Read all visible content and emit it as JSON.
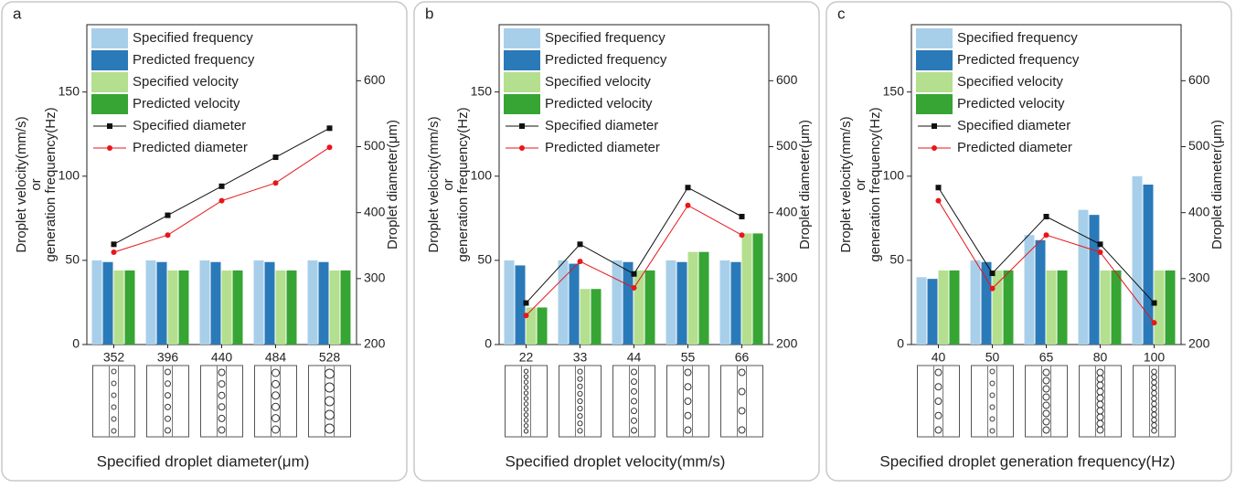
{
  "chart_data": [
    {
      "type": "bar",
      "panel": "a",
      "categories": [
        "352",
        "396",
        "440",
        "484",
        "528"
      ],
      "series": [
        {
          "name": "Specified frequency",
          "color": "#a8cfea",
          "values": [
            50,
            50,
            50,
            50,
            50
          ]
        },
        {
          "name": "Predicted frequency",
          "color": "#2a7ab9",
          "values": [
            49,
            49,
            49,
            49,
            49
          ]
        },
        {
          "name": "Specified velocity",
          "color": "#b4df8e",
          "values": [
            44,
            44,
            44,
            44,
            44
          ]
        },
        {
          "name": "Predicted velocity",
          "color": "#36a534",
          "values": [
            44,
            44,
            44,
            44,
            44
          ]
        },
        {
          "name": "Specified diameter",
          "color": "#111111",
          "axis": "y2",
          "marker": "square",
          "values": [
            352,
            396,
            440,
            484,
            528
          ]
        },
        {
          "name": "Predicted diameter",
          "color": "#e8161b",
          "axis": "y2",
          "marker": "circle",
          "values": [
            340,
            366,
            418,
            445,
            499
          ]
        }
      ],
      "ylabel": [
        "Droplet velocity(mm/s)",
        "or",
        "generation frequency(Hz)"
      ],
      "y2label": "Droplet diameter(μm)",
      "xlabel": "Specified droplet diameter(μm)",
      "ylim": [
        0,
        190
      ],
      "yticks": [
        0,
        50,
        100,
        150
      ],
      "y2lim": [
        200,
        685
      ],
      "y2ticks": [
        200,
        300,
        400,
        500,
        600
      ],
      "legend": "upper left"
    },
    {
      "type": "bar",
      "panel": "b",
      "categories": [
        "22",
        "33",
        "44",
        "55",
        "66"
      ],
      "series": [
        {
          "name": "Specified frequency",
          "color": "#a8cfea",
          "values": [
            50,
            50,
            50,
            50,
            50
          ]
        },
        {
          "name": "Predicted frequency",
          "color": "#2a7ab9",
          "values": [
            47,
            48,
            49,
            49,
            49
          ]
        },
        {
          "name": "Specified velocity",
          "color": "#b4df8e",
          "values": [
            22,
            33,
            44,
            55,
            66
          ]
        },
        {
          "name": "Predicted velocity",
          "color": "#36a534",
          "values": [
            22,
            33,
            44,
            55,
            66
          ]
        },
        {
          "name": "Specified diameter",
          "color": "#111111",
          "axis": "y2",
          "marker": "square",
          "values": [
            263,
            352,
            307,
            438,
            394
          ]
        },
        {
          "name": "Predicted diameter",
          "color": "#e8161b",
          "axis": "y2",
          "marker": "circle",
          "values": [
            244,
            326,
            286,
            411,
            366
          ]
        }
      ],
      "ylabel": [
        "Droplet velocity(mm/s)",
        "or",
        "generation frequency(Hz)"
      ],
      "y2label": "Droplet diameter(μm)",
      "xlabel": "Specified droplet velocity(mm/s)",
      "ylim": [
        0,
        190
      ],
      "yticks": [
        0,
        50,
        100,
        150
      ],
      "y2lim": [
        200,
        685
      ],
      "y2ticks": [
        200,
        300,
        400,
        500,
        600
      ],
      "legend": "upper left"
    },
    {
      "type": "bar",
      "panel": "c",
      "categories": [
        "40",
        "50",
        "65",
        "80",
        "100"
      ],
      "series": [
        {
          "name": "Specified frequency",
          "color": "#a8cfea",
          "values": [
            40,
            50,
            65,
            80,
            100
          ]
        },
        {
          "name": "Predicted frequency",
          "color": "#2a7ab9",
          "values": [
            39,
            49,
            62,
            77,
            95
          ]
        },
        {
          "name": "Specified velocity",
          "color": "#b4df8e",
          "values": [
            44,
            44,
            44,
            44,
            44
          ]
        },
        {
          "name": "Predicted velocity",
          "color": "#36a534",
          "values": [
            44,
            44,
            44,
            44,
            44
          ]
        },
        {
          "name": "Specified diameter",
          "color": "#111111",
          "axis": "y2",
          "marker": "square",
          "values": [
            438,
            308,
            394,
            352,
            263
          ]
        },
        {
          "name": "Predicted diameter",
          "color": "#e8161b",
          "axis": "y2",
          "marker": "circle",
          "values": [
            418,
            285,
            366,
            340,
            233
          ]
        }
      ],
      "ylabel": [
        "Droplet velocity(mm/s)",
        "or",
        "generation frequency(Hz)"
      ],
      "y2label": "Droplet diameter(μm)",
      "xlabel": "Specified droplet generation frequency(Hz)",
      "ylim": [
        0,
        190
      ],
      "yticks": [
        0,
        50,
        100,
        150
      ],
      "y2lim": [
        200,
        685
      ],
      "y2ticks": [
        200,
        300,
        400,
        500,
        600
      ],
      "legend": "upper left"
    }
  ]
}
